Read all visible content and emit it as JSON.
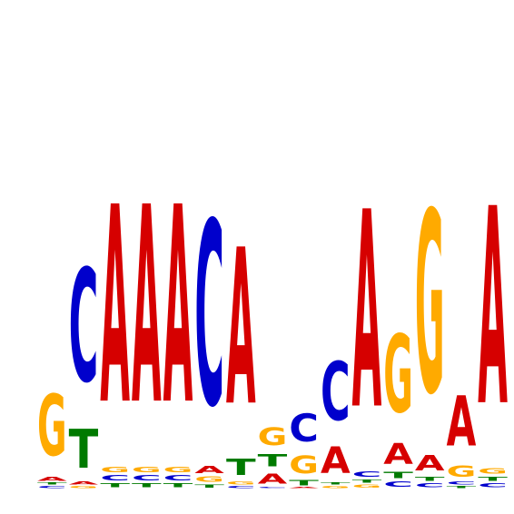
{
  "colors": {
    "A": "#d60000",
    "C": "#0000cc",
    "G": "#ffaa00",
    "T": "#007a00"
  },
  "max_bits": 2.0,
  "positions": [
    {
      "A": 0.04,
      "C": 0.02,
      "G": 0.6,
      "T": 0.02
    },
    {
      "A": 0.03,
      "C": 1.1,
      "G": 0.02,
      "T": 0.38
    },
    {
      "A": 1.92,
      "C": 0.05,
      "G": 0.05,
      "T": 0.04
    },
    {
      "A": 1.92,
      "C": 0.05,
      "G": 0.05,
      "T": 0.04
    },
    {
      "A": 1.92,
      "C": 0.05,
      "G": 0.05,
      "T": 0.04
    },
    {
      "A": 0.07,
      "C": 1.79,
      "G": 0.05,
      "T": 0.03
    },
    {
      "A": 1.52,
      "C": 0.02,
      "G": 0.03,
      "T": 0.16
    },
    {
      "A": 0.1,
      "C": 0.01,
      "G": 0.17,
      "T": 0.12
    },
    {
      "A": 0.01,
      "C": 0.27,
      "G": 0.17,
      "T": 0.05
    },
    {
      "A": 0.26,
      "C": 0.57,
      "G": 0.02,
      "T": 0.02
    },
    {
      "A": 1.92,
      "C": 0.05,
      "G": 0.03,
      "T": 0.03
    },
    {
      "A": 0.2,
      "C": 0.05,
      "G": 0.76,
      "T": 0.06
    },
    {
      "A": 0.15,
      "C": 0.04,
      "G": 1.77,
      "T": 0.04
    },
    {
      "A": 0.49,
      "C": 0.03,
      "G": 0.11,
      "T": 0.02
    },
    {
      "A": 1.92,
      "C": 0.04,
      "G": 0.05,
      "T": 0.04
    }
  ]
}
